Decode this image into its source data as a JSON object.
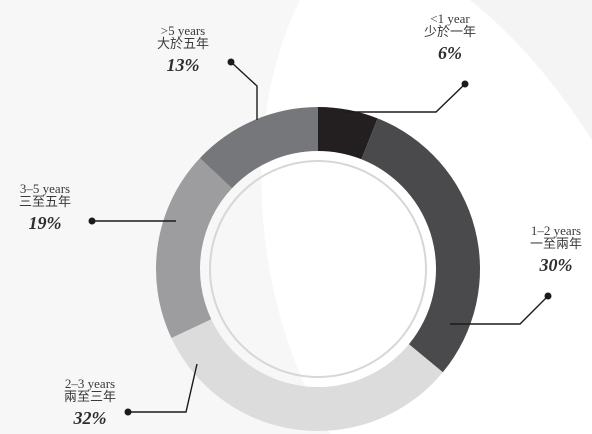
{
  "colors": {
    "leader": "#1e1a1c",
    "inner_ring": "#d7d7d7",
    "background_swoosh": "#f2f2f2"
  },
  "chart_data": {
    "type": "pie",
    "style": "donut",
    "slices": [
      {
        "label": "<1 year",
        "label_zh": "少於一年",
        "value": 6,
        "value_label": "6%",
        "color": "#231f20"
      },
      {
        "label": "1–2 years",
        "label_zh": "一至兩年",
        "value": 30,
        "value_label": "30%",
        "color": "#4a4a4c"
      },
      {
        "label": "2–3 years",
        "label_zh": "兩至三年",
        "value": 32,
        "value_label": "32%",
        "color": "#dcdcdc"
      },
      {
        "label": "3–5 years",
        "label_zh": "三至五年",
        "value": 19,
        "value_label": "19%",
        "color": "#9d9d9f"
      },
      {
        "label": ">5 years",
        "label_zh": "大於五年",
        "value": 13,
        "value_label": "13%",
        "color": "#76777a"
      }
    ]
  }
}
